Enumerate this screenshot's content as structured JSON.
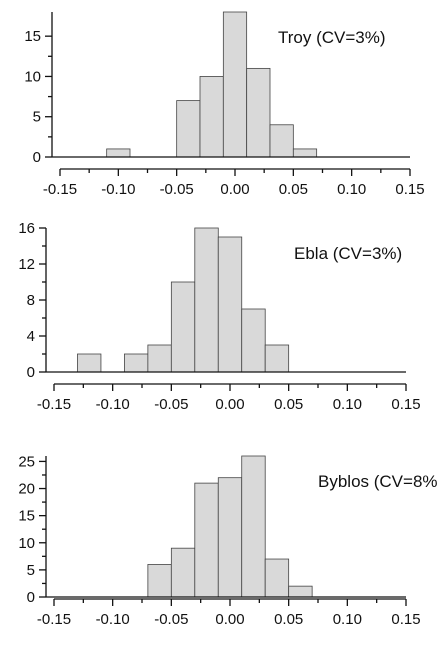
{
  "chart_data": [
    {
      "type": "bar",
      "title": "Troy (CV=3%)",
      "bin_width": 0.02,
      "bins": [
        {
          "x0": -0.11,
          "count": 1
        },
        {
          "x0": -0.05,
          "count": 7
        },
        {
          "x0": -0.03,
          "count": 10
        },
        {
          "x0": -0.01,
          "count": 18
        },
        {
          "x0": 0.01,
          "count": 11
        },
        {
          "x0": 0.03,
          "count": 4
        },
        {
          "x0": 0.05,
          "count": 1
        }
      ],
      "xlim": [
        -0.15,
        0.15
      ],
      "xticks": [
        "-0.15",
        "-0.10",
        "-0.05",
        "0.00",
        "0.05",
        "0.10",
        "0.15"
      ],
      "ylim": [
        0,
        18
      ],
      "yticks": [
        "0",
        "5",
        "10",
        "15"
      ],
      "xlabel": "",
      "ylabel": ""
    },
    {
      "type": "bar",
      "title": "Ebla (CV=3%)",
      "bin_width": 0.02,
      "bins": [
        {
          "x0": -0.13,
          "count": 2
        },
        {
          "x0": -0.09,
          "count": 2
        },
        {
          "x0": -0.07,
          "count": 3
        },
        {
          "x0": -0.05,
          "count": 10
        },
        {
          "x0": -0.03,
          "count": 16
        },
        {
          "x0": -0.01,
          "count": 15
        },
        {
          "x0": 0.01,
          "count": 7
        },
        {
          "x0": 0.03,
          "count": 3
        }
      ],
      "xlim": [
        -0.15,
        0.15
      ],
      "xticks": [
        "-0.15",
        "-0.10",
        "-0.05",
        "0.00",
        "0.05",
        "0.10",
        "0.15"
      ],
      "ylim": [
        0,
        16
      ],
      "yticks": [
        "0",
        "4",
        "8",
        "12",
        "16"
      ],
      "xlabel": "",
      "ylabel": ""
    },
    {
      "type": "bar",
      "title": "Byblos (CV=8%",
      "bin_width": 0.02,
      "bins": [
        {
          "x0": -0.07,
          "count": 6
        },
        {
          "x0": -0.05,
          "count": 9
        },
        {
          "x0": -0.03,
          "count": 21
        },
        {
          "x0": -0.01,
          "count": 22
        },
        {
          "x0": 0.01,
          "count": 26
        },
        {
          "x0": 0.03,
          "count": 7
        },
        {
          "x0": 0.05,
          "count": 2
        }
      ],
      "xlim": [
        -0.15,
        0.15
      ],
      "xticks": [
        "-0.15",
        "-0.10",
        "-0.05",
        "0.00",
        "0.05",
        "0.10",
        "0.15"
      ],
      "ylim": [
        0,
        26
      ],
      "yticks": [
        "0",
        "5",
        "10",
        "15",
        "20",
        "25"
      ],
      "xlabel": "",
      "ylabel": ""
    }
  ]
}
